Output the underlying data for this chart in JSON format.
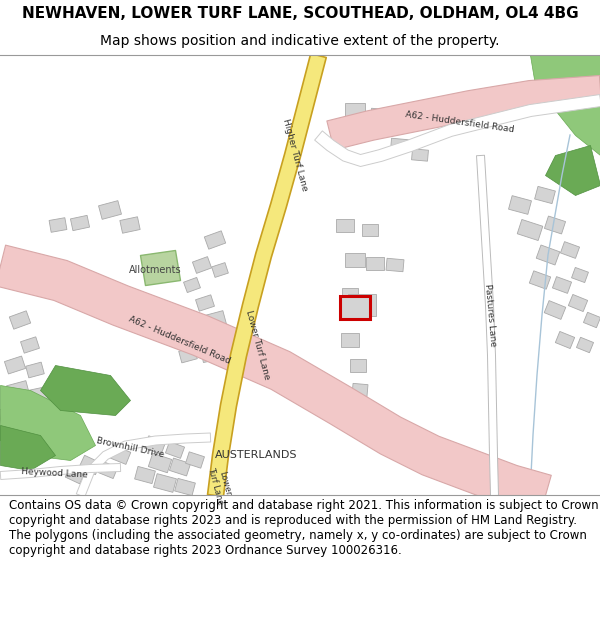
{
  "title_line1": "NEWHAVEN, LOWER TURF LANE, SCOUTHEAD, OLDHAM, OL4 4BG",
  "title_line2": "Map shows position and indicative extent of the property.",
  "footer_text": "Contains OS data © Crown copyright and database right 2021. This information is subject to Crown copyright and database rights 2023 and is reproduced with the permission of HM Land Registry. The polygons (including the associated geometry, namely x, y co-ordinates) are subject to Crown copyright and database rights 2023 Ordnance Survey 100026316.",
  "map_bg": "#f0efec",
  "road_pink_color": "#f2c8c8",
  "road_pink_edge": "#d8a8a8",
  "road_yellow_color": "#f5e87c",
  "road_yellow_stroke": "#c8a020",
  "building_color": "#d4d4d4",
  "building_stroke": "#aaaaaa",
  "green_color": "#8fc87a",
  "green2_color": "#6aaa55",
  "allot_color": "#b8d4a0",
  "allot_edge": "#8ab870",
  "red_color": "#cc0000",
  "water_color": "#a8c4d8",
  "text_color": "#333333",
  "title_fontsize": 11,
  "subtitle_fontsize": 10,
  "footer_fontsize": 8.5,
  "label_size": 7
}
